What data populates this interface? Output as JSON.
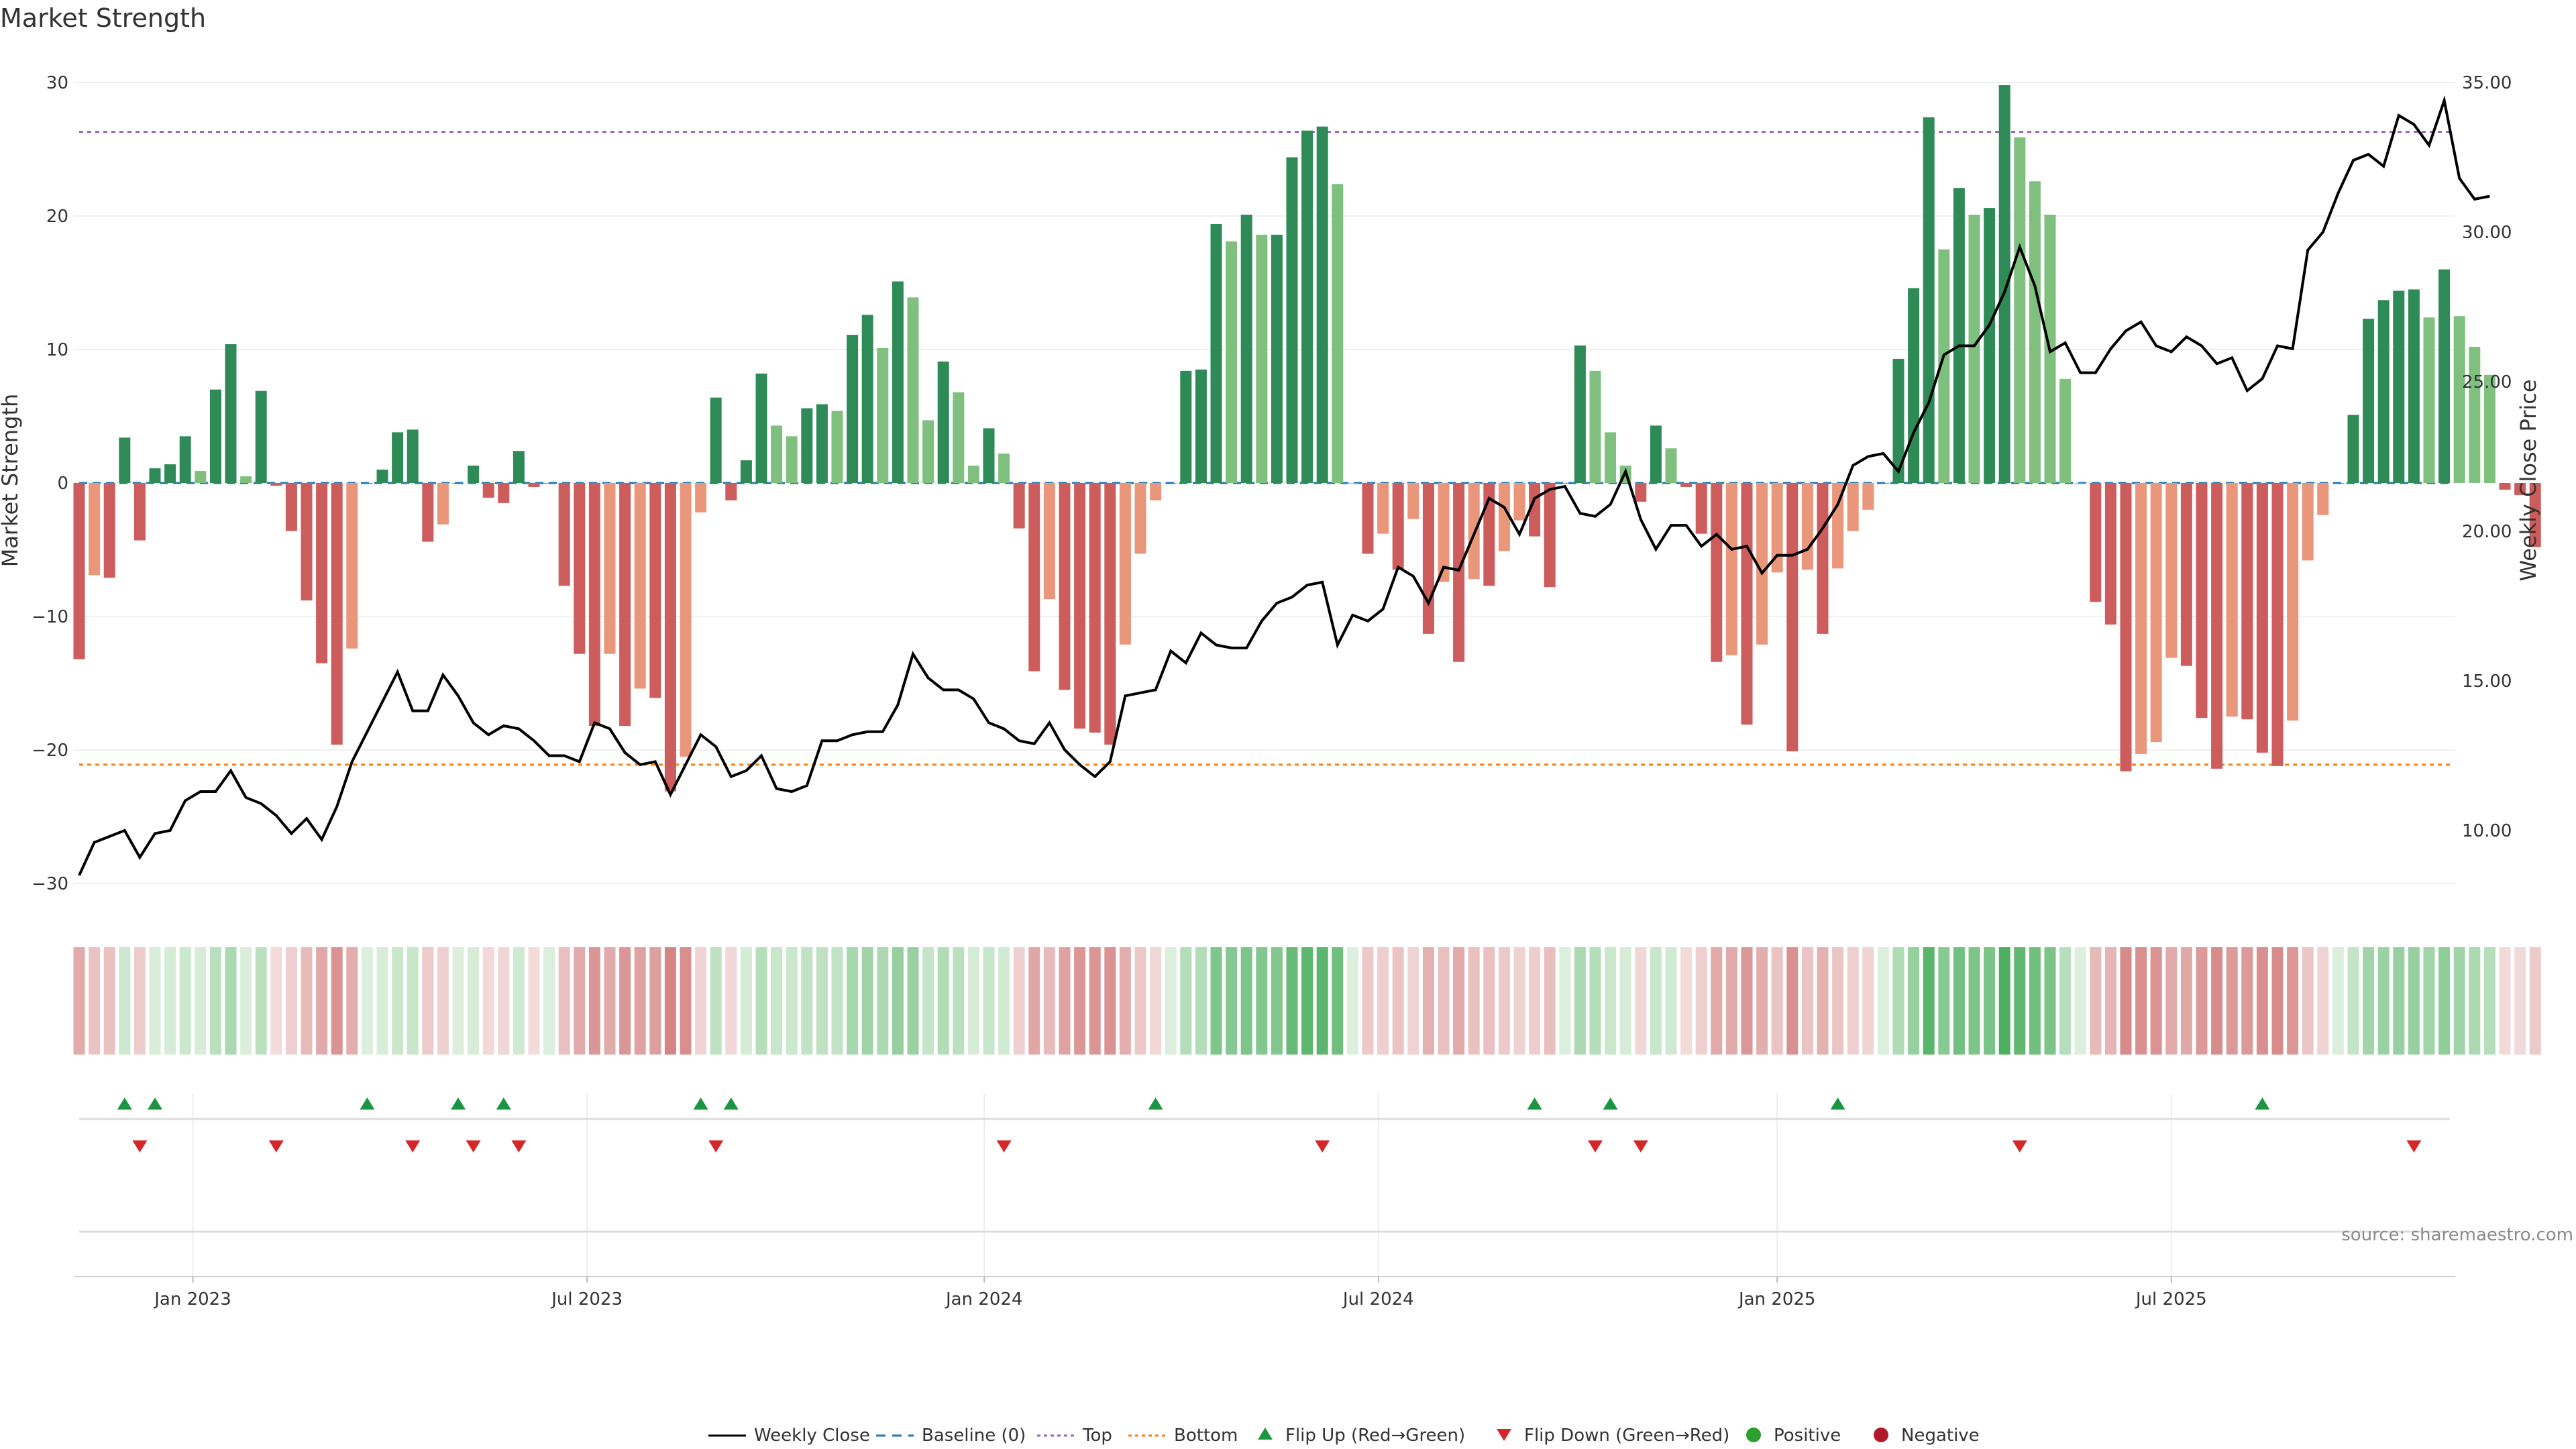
{
  "chart_data": {
    "type": "bar+line",
    "title": "Market Strength",
    "ylabel_left": "Market Strength",
    "ylabel_right": "Weekly Close Price",
    "left_axis": {
      "ylim": [
        -32,
        32
      ],
      "ticks": [
        30,
        20,
        10,
        0,
        -10,
        -20,
        -30
      ],
      "tick_labels": [
        "30",
        "20",
        "10",
        "0",
        "−10",
        "−20",
        "−30"
      ]
    },
    "right_axis": {
      "ylim": [
        8.0,
        35.0
      ],
      "ticks": [
        35,
        30,
        25,
        20,
        15,
        10
      ],
      "tick_labels": [
        "35.00",
        "30.00",
        "25.00",
        "20.00",
        "15.00",
        "10.00"
      ]
    },
    "x_tick_labels": [
      {
        "label": "Jan 2023",
        "week": 7.5
      },
      {
        "label": "Jul 2023",
        "week": 33.5
      },
      {
        "label": "Jan 2024",
        "week": 59.7
      },
      {
        "label": "Jul 2024",
        "week": 85.7
      },
      {
        "label": "Jan 2025",
        "week": 112
      },
      {
        "label": "Jul 2025",
        "week": 138
      }
    ],
    "reference_lines": {
      "baseline": 0,
      "top": 26.3,
      "bottom": -21.1
    },
    "colors": {
      "strong_green": "#2e8b57",
      "light_green": "#7fc07f",
      "strong_red": "#cd5c5c",
      "light_red": "#e9967a",
      "line": "#000000",
      "top": "#9467bd",
      "bottom": "#ff7f0e",
      "baseline": "#1f77b4",
      "flip_up": "#1a9641",
      "flip_down": "#d62728",
      "positive": "#2ca02c",
      "negative": "#b2182b"
    },
    "strength": [
      -13.2,
      -6.9,
      -7.1,
      3.4,
      -4.3,
      1.1,
      1.4,
      3.5,
      0.9,
      7.0,
      10.4,
      0.5,
      6.9,
      -0.2,
      -3.6,
      -8.8,
      -13.5,
      -19.6,
      -12.4,
      0.0,
      1.0,
      3.8,
      4.0,
      -4.4,
      -3.1,
      0.0,
      1.3,
      -1.1,
      -1.5,
      2.4,
      -0.3,
      0.0,
      -7.7,
      -12.8,
      -18.2,
      -12.8,
      -18.2,
      -15.4,
      -16.1,
      -23.1,
      -20.5,
      -2.2,
      6.4,
      -1.3,
      1.7,
      8.2,
      4.3,
      3.5,
      5.6,
      5.9,
      5.4,
      11.1,
      12.6,
      10.1,
      15.1,
      13.9,
      4.7,
      9.1,
      6.8,
      1.3,
      4.1,
      2.2,
      -3.4,
      -14.1,
      -8.7,
      -15.5,
      -18.4,
      -18.7,
      -19.6,
      -12.1,
      -5.3,
      -1.3,
      0.0,
      8.4,
      8.5,
      19.4,
      18.1,
      20.1,
      18.6,
      18.6,
      24.4,
      26.4,
      26.7,
      22.4,
      0.0,
      -5.3,
      -3.8,
      -6.5,
      -2.7,
      -11.3,
      -7.4,
      -13.4,
      -7.2,
      -7.7,
      -5.1,
      -2.8,
      -4.0,
      -7.8,
      0.0,
      10.3,
      8.4,
      3.8,
      1.3,
      -1.4,
      4.3,
      2.6,
      -0.3,
      -3.8,
      -13.4,
      -12.9,
      -18.1,
      -12.1,
      -6.7,
      -20.1,
      -6.5,
      -11.3,
      -6.4,
      -3.6,
      -2.0,
      0.0,
      9.3,
      14.6,
      27.4,
      17.5,
      22.1,
      20.1,
      20.6,
      29.8,
      25.9,
      22.6,
      20.1,
      7.8,
      0.0,
      -8.9,
      -10.6,
      -21.6,
      -20.3,
      -19.4,
      -13.1,
      -13.7,
      -17.6,
      -21.4,
      -17.5,
      -17.7,
      -20.2,
      -21.2,
      -17.8,
      -5.8,
      -2.4,
      0.0,
      5.1,
      12.3,
      13.7,
      14.4,
      14.5,
      12.4,
      16.0,
      12.5,
      10.2,
      8.1,
      -0.5,
      -0.9,
      -4.8
    ],
    "weekly_close": [
      8.5,
      9.6,
      9.8,
      10.0,
      9.1,
      9.9,
      10.0,
      11.0,
      11.3,
      11.3,
      12.0,
      11.1,
      10.9,
      10.5,
      9.9,
      10.4,
      9.7,
      10.8,
      12.3,
      13.3,
      14.3,
      15.3,
      14.0,
      14.0,
      15.2,
      14.5,
      13.6,
      13.2,
      13.5,
      13.4,
      13.0,
      12.5,
      12.5,
      12.3,
      13.6,
      13.4,
      12.6,
      12.2,
      12.3,
      11.2,
      12.2,
      13.2,
      12.8,
      11.8,
      12.0,
      12.5,
      11.4,
      11.3,
      11.5,
      13.0,
      13.0,
      13.2,
      13.3,
      13.3,
      14.2,
      15.9,
      15.1,
      14.7,
      14.7,
      14.4,
      13.6,
      13.4,
      13.0,
      12.9,
      13.6,
      12.7,
      12.2,
      11.8,
      12.3,
      14.5,
      14.6,
      14.7,
      16.0,
      15.6,
      16.6,
      16.2,
      16.1,
      16.1,
      17.0,
      17.6,
      17.8,
      18.2,
      18.3,
      16.2,
      17.2,
      17.0,
      17.4,
      18.8,
      18.5,
      17.6,
      18.8,
      18.7,
      19.9,
      21.1,
      20.8,
      19.9,
      21.1,
      21.4,
      21.5,
      20.6,
      20.5,
      20.9,
      22.0,
      20.4,
      19.4,
      20.2,
      20.2,
      19.5,
      19.9,
      19.4,
      19.5,
      18.6,
      19.2,
      19.2,
      19.4,
      20.1,
      20.9,
      22.2,
      22.5,
      22.6,
      22.0,
      23.3,
      24.3,
      25.9,
      26.2,
      26.2,
      26.9,
      28.0,
      29.5,
      28.2,
      26.0,
      26.3,
      25.3,
      25.3,
      26.1,
      26.7,
      27.0,
      26.2,
      26.0,
      26.5,
      26.2,
      25.6,
      25.8,
      24.7,
      25.1,
      26.2,
      26.1,
      29.4,
      30.0,
      31.3,
      32.4,
      32.6,
      32.2,
      33.9,
      33.6,
      32.9,
      34.4,
      31.8,
      31.1,
      31.2
    ],
    "flip_up_weeks": [
      3,
      5,
      19,
      25,
      28,
      41,
      43,
      71,
      96,
      101,
      116,
      144
    ],
    "flip_down_weeks": [
      4,
      13,
      22,
      26,
      29,
      42,
      61,
      82,
      100,
      103,
      128,
      154
    ],
    "legend": [
      {
        "key": "line",
        "label": "Weekly Close"
      },
      {
        "key": "baseline",
        "label": "Baseline (0)"
      },
      {
        "key": "top",
        "label": "Top"
      },
      {
        "key": "bottom",
        "label": "Bottom"
      },
      {
        "key": "flip_up",
        "label": "Flip Up (Red→Green)"
      },
      {
        "key": "flip_down",
        "label": "Flip Down (Green→Red)"
      },
      {
        "key": "positive",
        "label": "Positive"
      },
      {
        "key": "negative",
        "label": "Negative"
      }
    ],
    "source_text": "source: sharemaestro.com"
  }
}
